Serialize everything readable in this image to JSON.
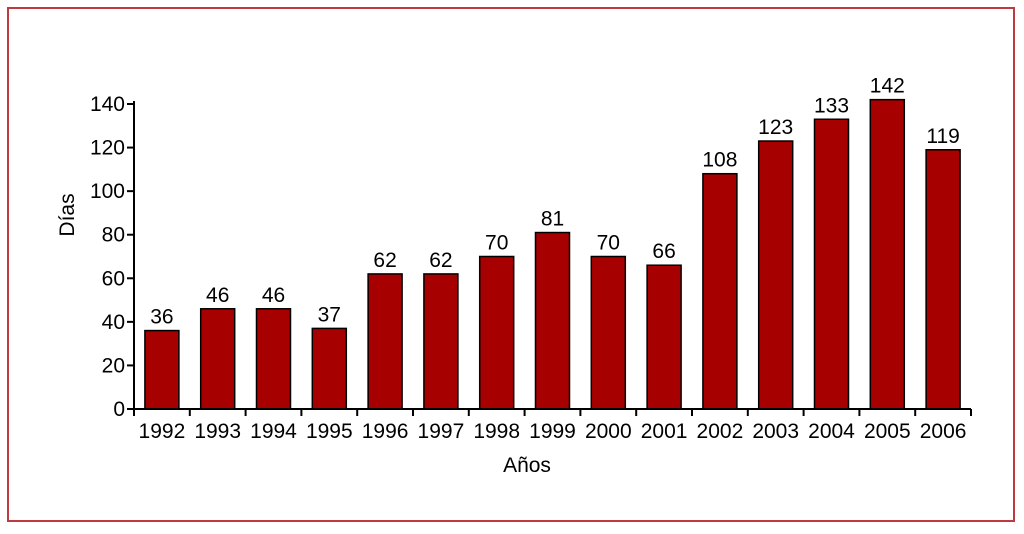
{
  "colors": {
    "frame": "#c0393f",
    "bar": "#a60000",
    "axis": "#000000"
  },
  "chart_data": {
    "type": "bar",
    "title": "",
    "xlabel": "Años",
    "ylabel": "Días",
    "categories": [
      "1992",
      "1993",
      "1994",
      "1995",
      "1996",
      "1997",
      "1998",
      "1999",
      "2000",
      "2001",
      "2002",
      "2003",
      "2004",
      "2005",
      "2006"
    ],
    "values": [
      36,
      46,
      46,
      37,
      62,
      62,
      70,
      81,
      70,
      66,
      108,
      123,
      133,
      142,
      119
    ],
    "ylim": [
      0,
      140
    ],
    "yticks": [
      0,
      20,
      40,
      60,
      80,
      100,
      120,
      140
    ],
    "grid": false,
    "legend": "none"
  }
}
